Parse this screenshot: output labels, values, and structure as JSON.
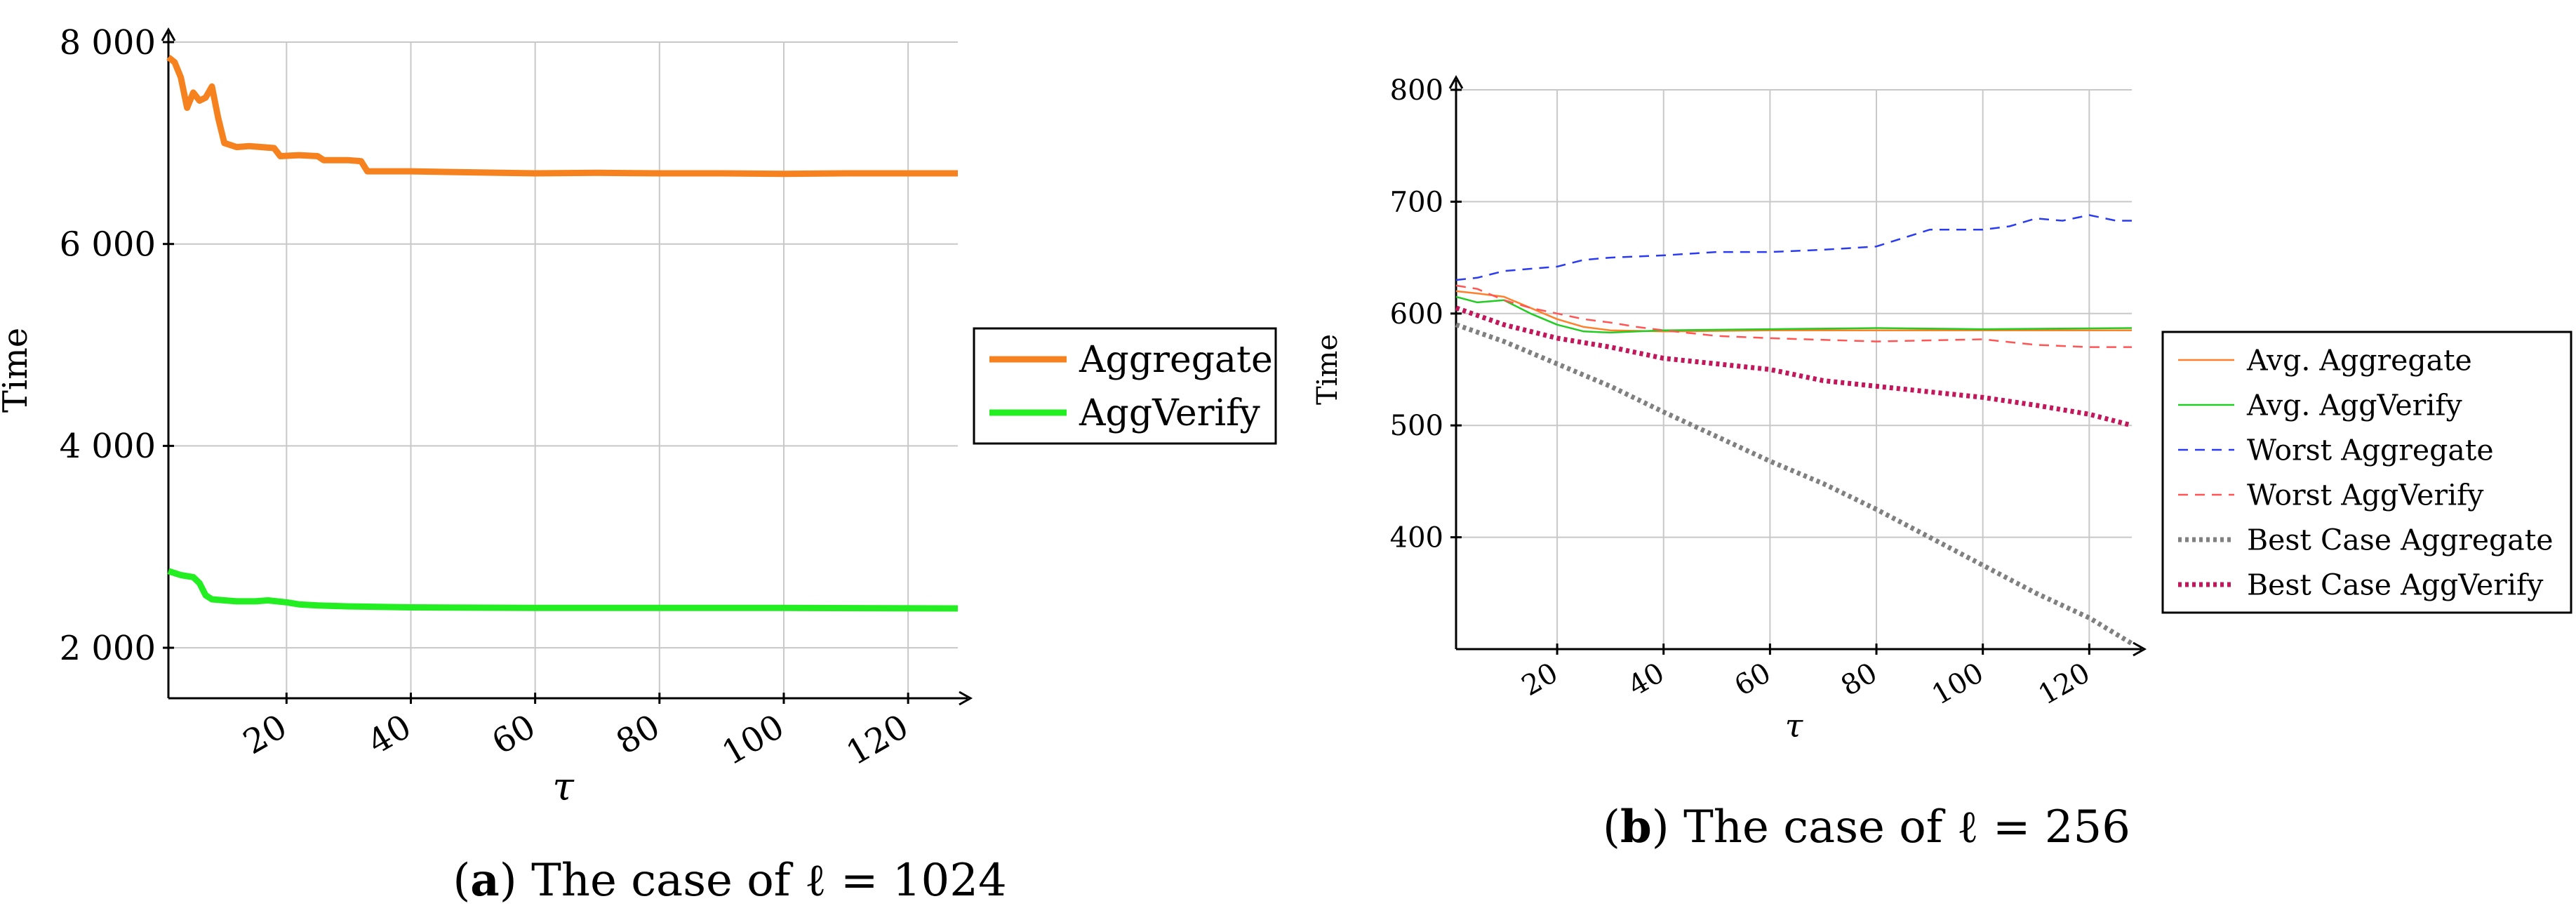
{
  "chart_data": [
    {
      "type": "line",
      "title": "",
      "xlabel": "τ",
      "ylabel": "Time",
      "xlim": [
        1,
        128
      ],
      "ylim": [
        1500,
        8000
      ],
      "xticks": [
        20,
        40,
        60,
        80,
        100,
        120
      ],
      "xtick_labels": [
        "20",
        "40",
        "60",
        "80",
        "100",
        "120"
      ],
      "yticks": [
        2000,
        4000,
        6000,
        8000
      ],
      "ytick_labels": [
        "2 000",
        "4 000",
        "6 000",
        "8 000"
      ],
      "grid": true,
      "legend_position": "right",
      "caption": {
        "label": "a",
        "text": "The case of ℓ = 1024"
      },
      "series": [
        {
          "name": "Aggregate",
          "color": "#f5821f",
          "style": "solid-thick",
          "points": [
            [
              1,
              7850
            ],
            [
              2,
              7800
            ],
            [
              3,
              7650
            ],
            [
              4,
              7350
            ],
            [
              5,
              7500
            ],
            [
              6,
              7420
            ],
            [
              7,
              7450
            ],
            [
              8,
              7560
            ],
            [
              9,
              7250
            ],
            [
              10,
              7000
            ],
            [
              12,
              6960
            ],
            [
              14,
              6970
            ],
            [
              16,
              6960
            ],
            [
              18,
              6950
            ],
            [
              19,
              6870
            ],
            [
              22,
              6880
            ],
            [
              25,
              6870
            ],
            [
              26,
              6830
            ],
            [
              30,
              6830
            ],
            [
              32,
              6820
            ],
            [
              33,
              6720
            ],
            [
              40,
              6720
            ],
            [
              50,
              6710
            ],
            [
              60,
              6700
            ],
            [
              70,
              6705
            ],
            [
              80,
              6700
            ],
            [
              90,
              6700
            ],
            [
              100,
              6695
            ],
            [
              110,
              6700
            ],
            [
              120,
              6700
            ],
            [
              128,
              6700
            ]
          ]
        },
        {
          "name": "AggVerify",
          "color": "#22ee22",
          "style": "solid-thick",
          "points": [
            [
              1,
              2760
            ],
            [
              3,
              2720
            ],
            [
              5,
              2700
            ],
            [
              6,
              2640
            ],
            [
              7,
              2520
            ],
            [
              8,
              2480
            ],
            [
              10,
              2470
            ],
            [
              12,
              2460
            ],
            [
              15,
              2460
            ],
            [
              17,
              2470
            ],
            [
              20,
              2450
            ],
            [
              22,
              2430
            ],
            [
              25,
              2420
            ],
            [
              30,
              2410
            ],
            [
              40,
              2400
            ],
            [
              60,
              2395
            ],
            [
              80,
              2395
            ],
            [
              100,
              2395
            ],
            [
              128,
              2390
            ]
          ]
        }
      ]
    },
    {
      "type": "line",
      "title": "",
      "xlabel": "τ",
      "ylabel": "Time",
      "xlim": [
        1,
        128
      ],
      "ylim": [
        300,
        800
      ],
      "xticks": [
        20,
        40,
        60,
        80,
        100,
        120
      ],
      "xtick_labels": [
        "20",
        "40",
        "60",
        "80",
        "100",
        "120"
      ],
      "yticks": [
        400,
        500,
        600,
        700,
        800
      ],
      "ytick_labels": [
        "400",
        "500",
        "600",
        "700",
        "800"
      ],
      "grid": true,
      "legend_position": "right",
      "caption": {
        "label": "b",
        "text": "The case of ℓ = 256"
      },
      "series": [
        {
          "name": "Avg. Aggregate",
          "color": "#ff7f2a",
          "style": "solid",
          "points": [
            [
              1,
              620
            ],
            [
              5,
              618
            ],
            [
              10,
              615
            ],
            [
              15,
              605
            ],
            [
              20,
              595
            ],
            [
              25,
              588
            ],
            [
              30,
              585
            ],
            [
              40,
              584
            ],
            [
              60,
              585
            ],
            [
              80,
              585
            ],
            [
              100,
              585
            ],
            [
              128,
              585
            ]
          ]
        },
        {
          "name": "Avg. AggVerify",
          "color": "#22cc22",
          "style": "solid",
          "points": [
            [
              1,
              615
            ],
            [
              5,
              610
            ],
            [
              10,
              612
            ],
            [
              15,
              600
            ],
            [
              20,
              590
            ],
            [
              25,
              584
            ],
            [
              30,
              583
            ],
            [
              40,
              585
            ],
            [
              60,
              586
            ],
            [
              80,
              587
            ],
            [
              100,
              586
            ],
            [
              128,
              587
            ]
          ]
        },
        {
          "name": "Worst Aggregate",
          "color": "#2b3cf0",
          "style": "dashed",
          "points": [
            [
              1,
              630
            ],
            [
              5,
              632
            ],
            [
              10,
              638
            ],
            [
              15,
              640
            ],
            [
              20,
              642
            ],
            [
              25,
              648
            ],
            [
              30,
              650
            ],
            [
              40,
              652
            ],
            [
              50,
              655
            ],
            [
              60,
              655
            ],
            [
              70,
              657
            ],
            [
              80,
              660
            ],
            [
              90,
              675
            ],
            [
              100,
              675
            ],
            [
              105,
              678
            ],
            [
              110,
              685
            ],
            [
              115,
              683
            ],
            [
              120,
              688
            ],
            [
              125,
              683
            ],
            [
              128,
              683
            ]
          ]
        },
        {
          "name": "Worst AggVerify",
          "color": "#ff5555",
          "style": "dashed",
          "points": [
            [
              1,
              625
            ],
            [
              5,
              622
            ],
            [
              10,
              612
            ],
            [
              15,
              605
            ],
            [
              20,
              600
            ],
            [
              25,
              595
            ],
            [
              30,
              592
            ],
            [
              35,
              588
            ],
            [
              40,
              585
            ],
            [
              50,
              580
            ],
            [
              60,
              578
            ],
            [
              80,
              575
            ],
            [
              100,
              577
            ],
            [
              110,
              572
            ],
            [
              120,
              570
            ],
            [
              128,
              570
            ]
          ]
        },
        {
          "name": "Best Case Aggregate",
          "color": "#808080",
          "style": "dotted",
          "points": [
            [
              1,
              590
            ],
            [
              10,
              575
            ],
            [
              20,
              555
            ],
            [
              30,
              535
            ],
            [
              40,
              512
            ],
            [
              50,
              490
            ],
            [
              60,
              468
            ],
            [
              70,
              448
            ],
            [
              80,
              425
            ],
            [
              90,
              400
            ],
            [
              100,
              375
            ],
            [
              110,
              350
            ],
            [
              120,
              328
            ],
            [
              128,
              305
            ]
          ]
        },
        {
          "name": "Best Case AggVerify",
          "color": "#c2185b",
          "style": "dotted",
          "points": [
            [
              1,
              605
            ],
            [
              10,
              590
            ],
            [
              20,
              578
            ],
            [
              30,
              570
            ],
            [
              40,
              560
            ],
            [
              50,
              555
            ],
            [
              60,
              550
            ],
            [
              70,
              540
            ],
            [
              80,
              535
            ],
            [
              90,
              530
            ],
            [
              100,
              525
            ],
            [
              110,
              518
            ],
            [
              120,
              510
            ],
            [
              128,
              500
            ]
          ]
        }
      ]
    }
  ]
}
